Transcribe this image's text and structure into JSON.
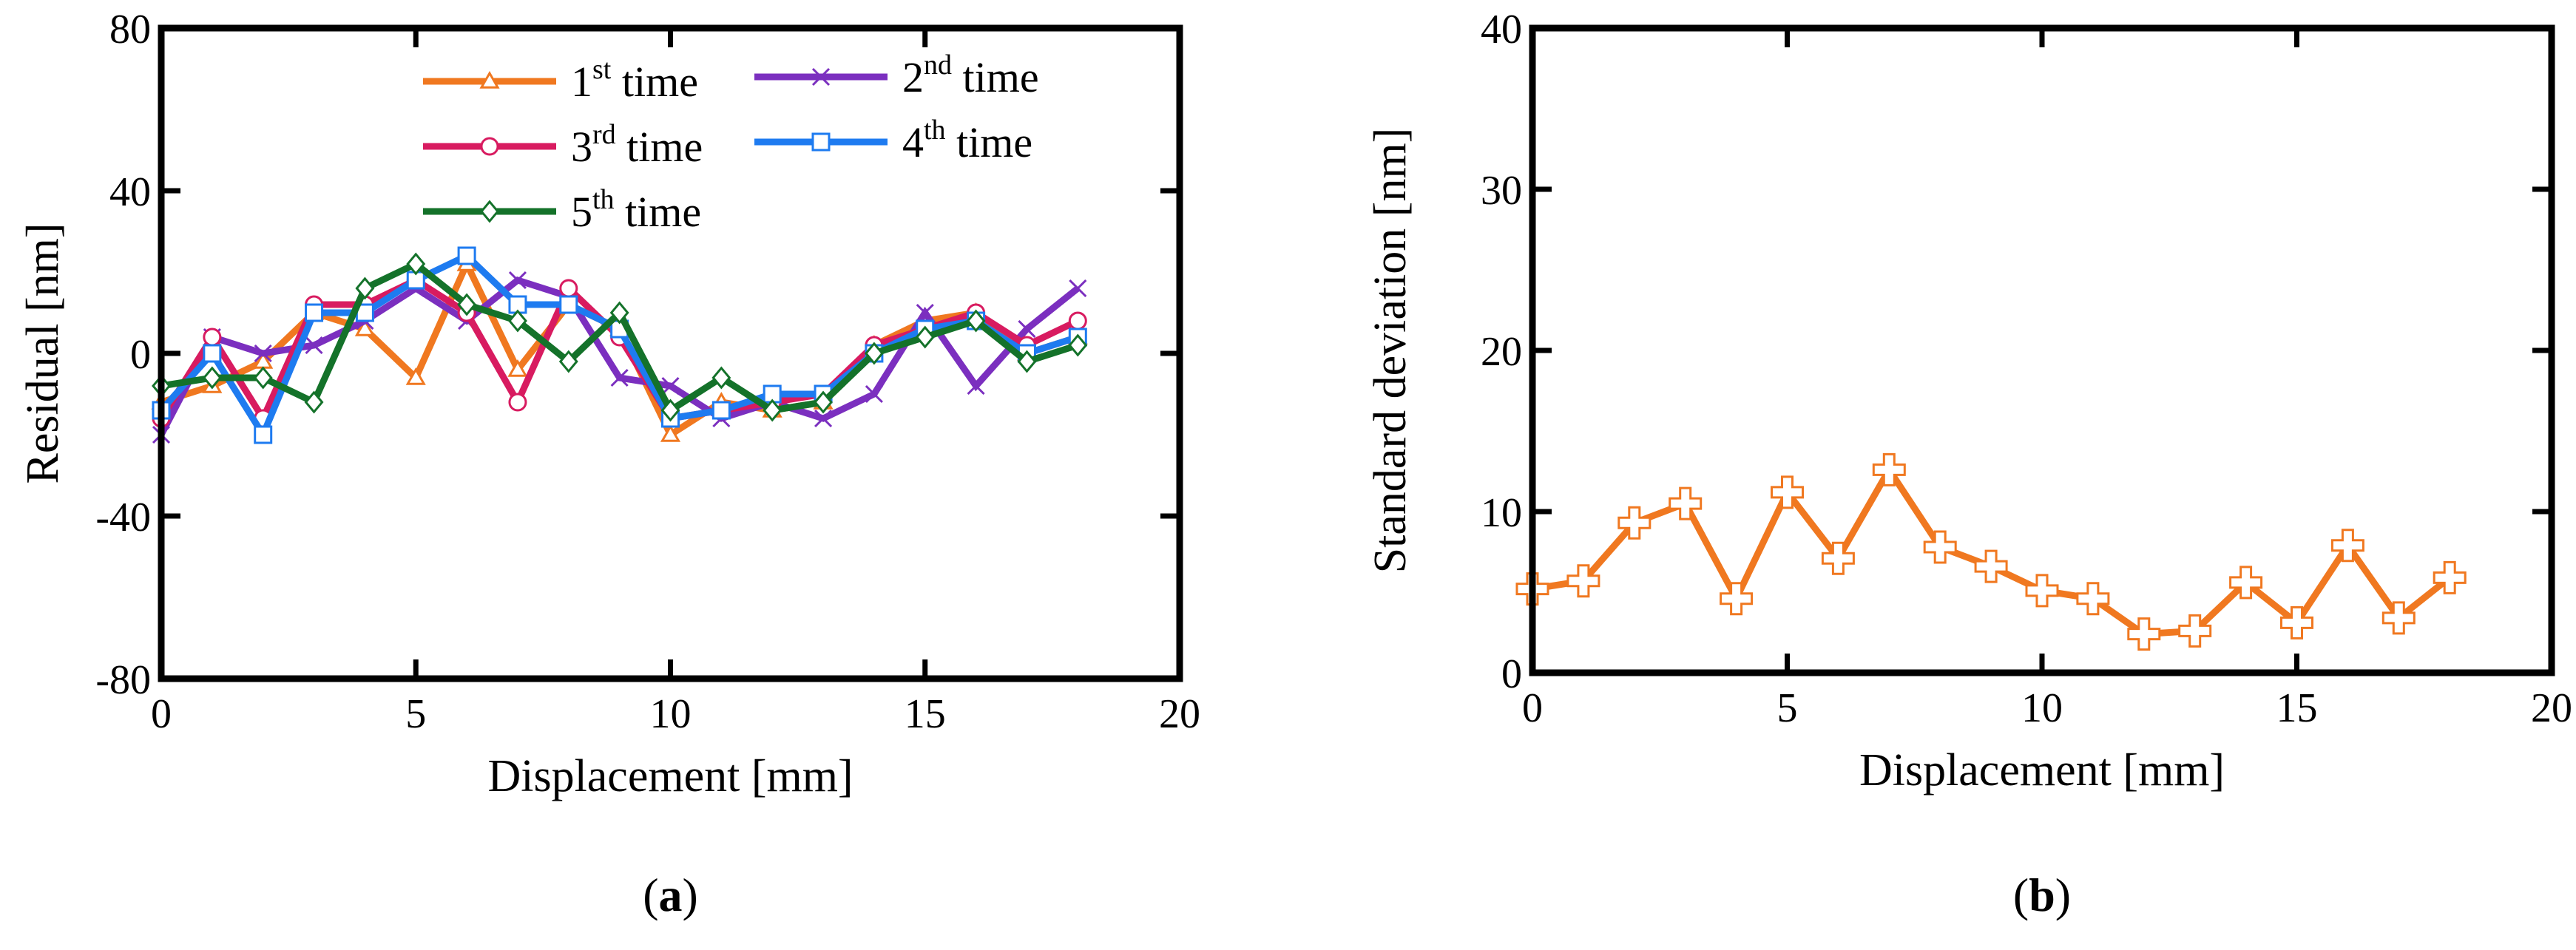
{
  "chart_data": [
    {
      "type": "line",
      "panel_label": "(a)",
      "panel_letter": "a",
      "xlabel": "Displacement    [mm]",
      "ylabel": "Residual    [nm]",
      "xlim": [
        0,
        20
      ],
      "ylim": [
        -80,
        80
      ],
      "xticks": [
        0,
        5,
        10,
        15,
        20
      ],
      "yticks": [
        -80,
        -40,
        0,
        40,
        80
      ],
      "legend_position": "top-center",
      "x": [
        0,
        1,
        2,
        3,
        4,
        5,
        6,
        7,
        8,
        9,
        10,
        11,
        12,
        13,
        14,
        15,
        16,
        17,
        18
      ],
      "series": [
        {
          "name": "1st time",
          "base": "1",
          "sup": "st",
          "suffix": " time",
          "color": "#F07820",
          "marker": "triangle",
          "values": [
            -12,
            -8,
            -2,
            10,
            6,
            -6,
            22,
            -4,
            12,
            6,
            -20,
            -12,
            -14,
            -12,
            2,
            8,
            10,
            0,
            4
          ]
        },
        {
          "name": "2nd time",
          "base": "2",
          "sup": "nd",
          "suffix": " time",
          "color": "#7B2FBF",
          "marker": "x",
          "values": [
            -20,
            4,
            0,
            2,
            8,
            16,
            8,
            18,
            14,
            -6,
            -8,
            -16,
            -12,
            -16,
            -10,
            10,
            -8,
            6,
            16
          ]
        },
        {
          "name": "3rd time",
          "base": "3",
          "sup": "rd",
          "suffix": " time",
          "color": "#D81B60",
          "marker": "circle",
          "values": [
            -16,
            4,
            -16,
            12,
            12,
            18,
            10,
            -12,
            16,
            4,
            -16,
            -14,
            -12,
            -10,
            2,
            6,
            10,
            2,
            8
          ]
        },
        {
          "name": "4th time",
          "base": "4",
          "sup": "th",
          "suffix": " time",
          "color": "#1E7BF0",
          "marker": "square",
          "values": [
            -14,
            0,
            -20,
            10,
            10,
            18,
            24,
            12,
            12,
            6,
            -16,
            -14,
            -10,
            -10,
            0,
            6,
            8,
            0,
            4
          ]
        },
        {
          "name": "5th time",
          "base": "5",
          "sup": "th",
          "suffix": " time",
          "color": "#14722A",
          "marker": "diamond",
          "values": [
            -8,
            -6,
            -6,
            -12,
            16,
            22,
            12,
            8,
            -2,
            10,
            -14,
            -6,
            -14,
            -12,
            0,
            4,
            8,
            -2,
            2
          ]
        }
      ]
    },
    {
      "type": "line",
      "panel_label": "(b)",
      "panel_letter": "b",
      "xlabel": "Displacement    [mm]",
      "ylabel": "Standard  deviation  [nm]",
      "xlim": [
        0,
        20
      ],
      "ylim": [
        0,
        40
      ],
      "xticks": [
        0,
        5,
        10,
        15,
        20
      ],
      "yticks": [
        0,
        10,
        20,
        30,
        40
      ],
      "x": [
        0,
        1,
        2,
        3,
        4,
        5,
        6,
        7,
        8,
        9,
        10,
        11,
        12,
        13,
        14,
        15,
        16,
        17,
        18
      ],
      "series": [
        {
          "name": "Standard deviation",
          "color": "#F07820",
          "marker": "plus",
          "values": [
            5.2,
            5.7,
            9.3,
            10.5,
            4.6,
            11.2,
            7.1,
            12.6,
            7.8,
            6.6,
            5.1,
            4.6,
            2.4,
            2.6,
            5.6,
            3.1,
            7.9,
            3.4,
            5.9
          ]
        }
      ]
    }
  ]
}
